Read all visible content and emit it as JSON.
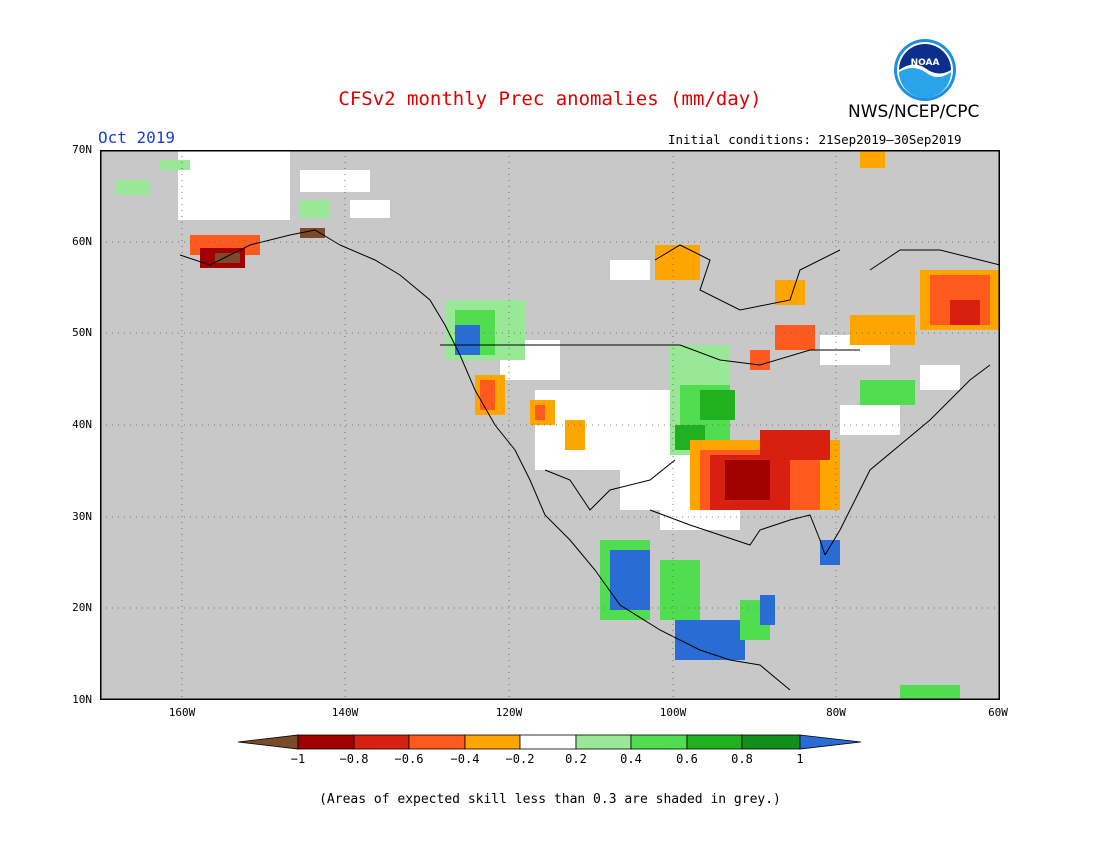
{
  "header": {
    "title": "CFSv2 monthly Prec anomalies (mm/day)",
    "agency": "NWS/NCEP/CPC",
    "month": "Oct 2019",
    "initial_conditions": "Initial conditions: 21Sep2019–30Sep2019",
    "logo_text": "NOAA"
  },
  "map": {
    "lat_labels": [
      "70N",
      "60N",
      "50N",
      "40N",
      "30N",
      "20N",
      "10N"
    ],
    "lon_labels": [
      "160W",
      "140W",
      "120W",
      "100W",
      "80W",
      "60W"
    ],
    "background": "#c8c8c8"
  },
  "colorbar": {
    "labels": [
      "−1",
      "−0.8",
      "−0.6",
      "−0.4",
      "−0.2",
      "0.2",
      "0.4",
      "0.6",
      "0.8",
      "1"
    ],
    "colors": [
      "#7a4a2a",
      "#a00000",
      "#d82010",
      "#ff5a1e",
      "#ffa500",
      "#ffffff",
      "#98e898",
      "#50dd50",
      "#20b020",
      "#10901a",
      "#2a6cd6"
    ]
  },
  "footnote": "(Areas of expected skill less than 0.3 are shaded in grey.)"
}
